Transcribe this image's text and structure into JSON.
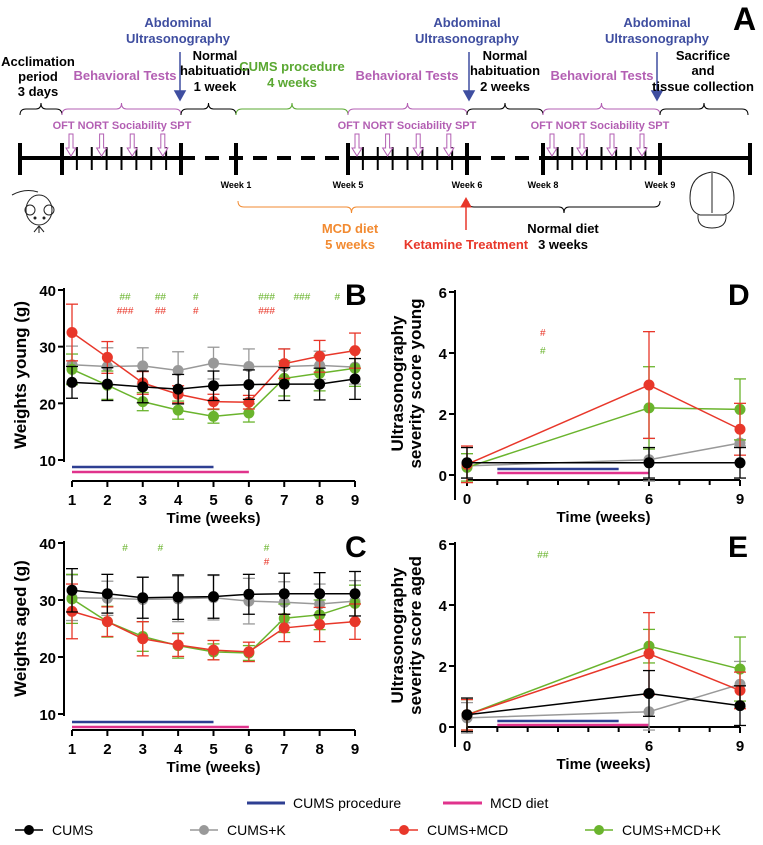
{
  "colors": {
    "CUMS": "#000000",
    "CUMS+K": "#999999",
    "CUMS+MCD": "#e8372a",
    "CUMS+MCD+K": "#6ab42d",
    "cums_bar": "#2e3f92",
    "mcd_bar": "#e0338c",
    "behavioral": "#b35fb3",
    "ultrasound": "#3f4ea0",
    "cums_text": "#5aa832",
    "mcd_text": "#f28a30",
    "ketamine": "#e8372a"
  },
  "timeline": {
    "panel_label": "A",
    "acclimation": [
      "Acclimation",
      "period",
      "3 days"
    ],
    "behavioral_tests": "Behavioral Tests",
    "ultrasonography": [
      "Abdominal",
      "Ultrasonography"
    ],
    "habituation_1": [
      "Normal",
      "habituation",
      "1 week"
    ],
    "cums": [
      "CUMS procedure",
      "4 weeks"
    ],
    "habituation_2": [
      "Normal",
      "habituation",
      "2 weeks"
    ],
    "sacrifice": [
      "Sacrifice",
      "and",
      "tissue collection"
    ],
    "tests": "OFT NORT Sociability SPT",
    "weeks": [
      "Week 1",
      "Week 5",
      "Week 6",
      "Week 8",
      "Week 9"
    ],
    "mcd": [
      "MCD diet",
      "5 weeks"
    ],
    "ketamine": "Ketamine Treatment",
    "normal_diet": [
      "Normal diet",
      "3 weeks"
    ],
    "icons": [
      "mouse-icon",
      "brain-icon"
    ]
  },
  "legend": {
    "bars": [
      "CUMS procedure",
      "MCD diet"
    ],
    "series": [
      "CUMS",
      "CUMS+K",
      "CUMS+MCD",
      "CUMS+MCD+K"
    ]
  },
  "chart_data": [
    {
      "panel": "B",
      "type": "line",
      "xlabel": "Time (weeks)",
      "ylabel": "Weights young (g)",
      "x": [
        1,
        2,
        3,
        4,
        5,
        6,
        7,
        8,
        9
      ],
      "ylim": [
        10,
        40
      ],
      "yticks": [
        10,
        20,
        30,
        40
      ],
      "series": [
        {
          "name": "CUMS",
          "values": [
            23.7,
            23.4,
            22.9,
            22.5,
            23.1,
            23.3,
            23.4,
            23.4,
            24.3
          ],
          "error": [
            2.8,
            2.9,
            2.8,
            2.6,
            2.6,
            2.6,
            2.9,
            2.8,
            3.6
          ]
        },
        {
          "name": "CUMS+K",
          "values": [
            26.8,
            26.5,
            26.6,
            25.8,
            27.1,
            26.5,
            26.5,
            26.7,
            26.4
          ],
          "error": [
            3.3,
            3.3,
            3.2,
            3.3,
            2.8,
            3.1,
            3.1,
            2.5,
            3.0
          ]
        },
        {
          "name": "CUMS+MCD",
          "values": [
            32.5,
            28.1,
            23.6,
            21.6,
            20.3,
            20.2,
            27.0,
            28.3,
            29.3
          ],
          "error": [
            5.0,
            2.8,
            2.0,
            1.5,
            1.3,
            1.2,
            2.6,
            2.8,
            3.1
          ]
        },
        {
          "name": "CUMS+MCD+K",
          "values": [
            26.0,
            23.2,
            20.3,
            18.8,
            17.7,
            18.3,
            24.4,
            25.3,
            26.2
          ],
          "error": [
            2.7,
            2.5,
            1.6,
            1.6,
            1.2,
            1.6,
            3.1,
            3.1,
            3.2
          ]
        }
      ],
      "annotations": [
        {
          "series": "CUMS+MCD+K",
          "x": 2.5,
          "text": "##"
        },
        {
          "series": "CUMS+MCD+K",
          "x": 3.5,
          "text": "##"
        },
        {
          "series": "CUMS+MCD+K",
          "x": 4.5,
          "text": "#"
        },
        {
          "series": "CUMS+MCD+K",
          "x": 6.5,
          "text": "###"
        },
        {
          "series": "CUMS+MCD+K",
          "x": 7.5,
          "text": "###"
        },
        {
          "series": "CUMS+MCD+K",
          "x": 8.5,
          "text": "#"
        },
        {
          "series": "CUMS+MCD",
          "x": 2.5,
          "text": "###"
        },
        {
          "series": "CUMS+MCD",
          "x": 3.5,
          "text": "##"
        },
        {
          "series": "CUMS+MCD",
          "x": 4.5,
          "text": "#"
        },
        {
          "series": "CUMS+MCD",
          "x": 6.5,
          "text": "###"
        }
      ],
      "periods": {
        "cums": [
          1,
          5
        ],
        "mcd": [
          1,
          6
        ]
      }
    },
    {
      "panel": "C",
      "type": "line",
      "xlabel": "Time (weeks)",
      "ylabel": "Weights aged (g)",
      "x": [
        1,
        2,
        3,
        4,
        5,
        6,
        7,
        8,
        9
      ],
      "ylim": [
        10,
        40
      ],
      "yticks": [
        10,
        20,
        30,
        40
      ],
      "series": [
        {
          "name": "CUMS",
          "values": [
            31.7,
            31.1,
            30.4,
            30.5,
            30.6,
            31.0,
            31.1,
            31.1,
            31.1
          ],
          "error": [
            3.8,
            3.4,
            3.6,
            3.9,
            3.8,
            3.5,
            3.6,
            3.7,
            3.9
          ]
        },
        {
          "name": "CUMS+K",
          "values": [
            30.4,
            30.3,
            30.1,
            30.2,
            30.4,
            29.8,
            29.6,
            29.3,
            29.8
          ],
          "error": [
            4.0,
            3.0,
            3.9,
            4.0,
            3.9,
            4.0,
            3.6,
            3.5,
            3.6
          ]
        },
        {
          "name": "CUMS+MCD",
          "values": [
            28.0,
            26.2,
            23.2,
            22.1,
            21.2,
            20.9,
            25.1,
            25.7,
            26.2
          ],
          "error": [
            4.8,
            2.6,
            3.0,
            2.0,
            1.7,
            1.7,
            2.4,
            3.0,
            3.1
          ]
        },
        {
          "name": "CUMS+MCD+K",
          "values": [
            30.2,
            26.2,
            23.6,
            22.0,
            20.9,
            20.7,
            26.8,
            27.4,
            29.4
          ],
          "error": [
            4.3,
            2.7,
            2.6,
            2.2,
            1.4,
            1.3,
            2.5,
            2.6,
            3.2
          ]
        }
      ],
      "annotations": [
        {
          "series": "CUMS+MCD+K",
          "x": 2.5,
          "text": "#"
        },
        {
          "series": "CUMS+MCD+K",
          "x": 3.5,
          "text": "#"
        },
        {
          "series": "CUMS+MCD+K",
          "x": 6.5,
          "text": "#"
        },
        {
          "series": "CUMS+MCD",
          "x": 6.5,
          "text": "#"
        }
      ],
      "periods": {
        "cums": [
          1,
          5
        ],
        "mcd": [
          1,
          6
        ]
      }
    },
    {
      "panel": "D",
      "type": "line",
      "xlabel": "Time (weeks)",
      "ylabel": [
        "Ultrasonography",
        "severity score young"
      ],
      "x": [
        0,
        6,
        9
      ],
      "ylim": [
        0,
        6
      ],
      "yticks": [
        0,
        2,
        4,
        6
      ],
      "series": [
        {
          "name": "CUMS",
          "values": [
            0.4,
            0.4,
            0.4
          ],
          "error": [
            0.5,
            0.5,
            0.5
          ]
        },
        {
          "name": "CUMS+K",
          "values": [
            0.3,
            0.5,
            1.05
          ],
          "error": [
            0.4,
            0.7,
            0.1
          ]
        },
        {
          "name": "CUMS+MCD",
          "values": [
            0.35,
            2.95,
            1.5
          ],
          "error": [
            0.6,
            1.75,
            0.85
          ]
        },
        {
          "name": "CUMS+MCD+K",
          "values": [
            0.25,
            2.2,
            2.15
          ],
          "error": [
            0.45,
            1.35,
            1.0
          ]
        }
      ],
      "annotations": [
        {
          "series": "CUMS+MCD",
          "x": 2.5,
          "text": "#"
        },
        {
          "series": "CUMS+MCD+K",
          "x": 2.5,
          "text": "#"
        }
      ],
      "periods": {
        "cums": [
          1,
          5
        ],
        "mcd": [
          1,
          6
        ]
      }
    },
    {
      "panel": "E",
      "type": "line",
      "xlabel": "Time (weeks)",
      "ylabel": [
        "Ultrasonography",
        "severity score aged"
      ],
      "x": [
        0,
        6,
        9
      ],
      "ylim": [
        0,
        6
      ],
      "yticks": [
        0,
        2,
        4,
        6
      ],
      "series": [
        {
          "name": "CUMS",
          "values": [
            0.4,
            1.1,
            0.7
          ],
          "error": [
            0.55,
            0.75,
            0.65
          ]
        },
        {
          "name": "CUMS+K",
          "values": [
            0.3,
            0.5,
            1.4
          ],
          "error": [
            0.5,
            0.6,
            0.75
          ]
        },
        {
          "name": "CUMS+MCD",
          "values": [
            0.4,
            2.4,
            1.2
          ],
          "error": [
            0.5,
            1.35,
            0.6
          ]
        },
        {
          "name": "CUMS+MCD+K",
          "values": [
            0.4,
            2.65,
            1.9
          ],
          "error": [
            0.5,
            0.55,
            1.05
          ]
        }
      ],
      "annotations": [
        {
          "series": "CUMS+MCD+K",
          "x": 2.5,
          "text": "##"
        }
      ],
      "periods": {
        "cums": [
          1,
          5
        ],
        "mcd": [
          1,
          6
        ]
      }
    }
  ]
}
